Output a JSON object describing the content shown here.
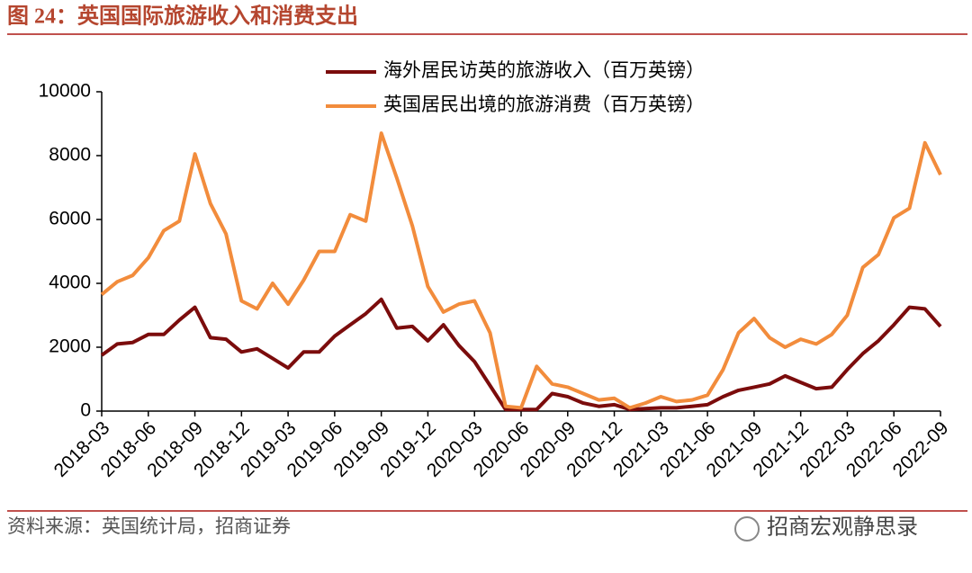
{
  "header": {
    "title": "图 24：英国国际旅游收入和消费支出"
  },
  "footer": {
    "source": "资料来源：英国统计局，招商证券",
    "watermark": "招商宏观静思录"
  },
  "chart_data": {
    "type": "line",
    "categories": [
      "2018-03",
      null,
      null,
      "2018-06",
      null,
      null,
      "2018-09",
      null,
      null,
      "2018-12",
      null,
      null,
      "2019-03",
      null,
      null,
      "2019-06",
      null,
      null,
      "2019-09",
      null,
      null,
      "2019-12",
      null,
      null,
      "2020-03",
      null,
      null,
      "2020-06",
      null,
      null,
      "2020-09",
      null,
      null,
      "2020-12",
      null,
      null,
      "2021-03",
      null,
      null,
      "2021-06",
      null,
      null,
      "2021-09",
      null,
      null,
      "2021-12",
      null,
      null,
      "2022-03",
      null,
      null,
      "2022-06",
      null,
      null,
      "2022-09"
    ],
    "series": [
      {
        "name": "海外居民访英的旅游收入（百万英镑）",
        "color": "#7b0c0c",
        "values": [
          1750,
          2100,
          2150,
          2400,
          2400,
          2850,
          3250,
          2300,
          2250,
          1850,
          1950,
          1650,
          1350,
          1850,
          1850,
          2350,
          2700,
          3050,
          3500,
          2600,
          2650,
          2200,
          2700,
          2050,
          1550,
          800,
          50,
          50,
          50,
          550,
          450,
          250,
          150,
          200,
          50,
          80,
          100,
          100,
          150,
          200,
          450,
          650,
          750,
          850,
          1100,
          900,
          700,
          750,
          1300,
          1800,
          2200,
          2700,
          3250,
          3200,
          2650
        ]
      },
      {
        "name": "英国居民出境的旅游消费（百万英镑）",
        "color": "#f28c3c",
        "values": [
          3650,
          4050,
          4250,
          4800,
          5650,
          5950,
          8050,
          6500,
          5550,
          3450,
          3200,
          4000,
          3350,
          4100,
          5000,
          5000,
          6150,
          5950,
          8700,
          7300,
          5800,
          3900,
          3100,
          3350,
          3450,
          2450,
          150,
          100,
          1400,
          850,
          750,
          550,
          350,
          400,
          100,
          250,
          450,
          300,
          350,
          500,
          1300,
          2450,
          2900,
          2300,
          2000,
          2250,
          2100,
          2400,
          3000,
          4500,
          4900,
          6050,
          6350,
          8400,
          7400
        ]
      }
    ],
    "ylim": [
      0,
      10000
    ],
    "yticks": [
      0,
      2000,
      4000,
      6000,
      8000,
      10000
    ],
    "grid": false
  }
}
